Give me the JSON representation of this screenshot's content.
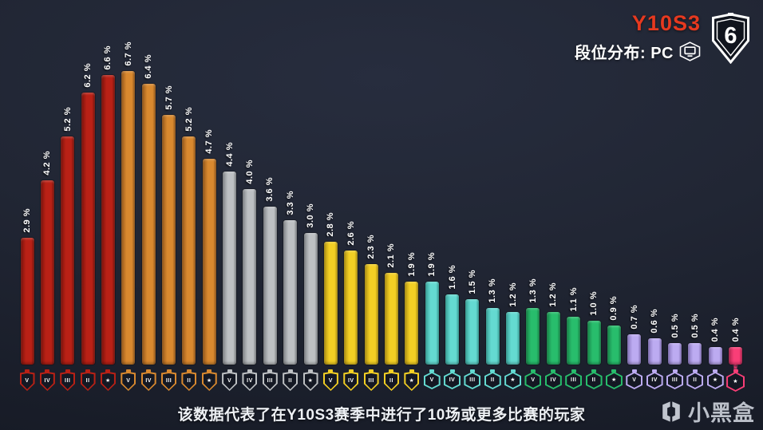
{
  "header": {
    "season": "Y10S3",
    "season_color": "#e6391f",
    "subtitle": "段位分布: PC",
    "platform": "PC",
    "logo_number": "6"
  },
  "chart_data": {
    "type": "bar",
    "title": "Y10S3 段位分布: PC",
    "xlabel": "",
    "ylabel": "",
    "unit": "%",
    "ylim": [
      0,
      7
    ],
    "grid": false,
    "legend_position": "none",
    "bar_label_format": "{value} %",
    "categories": [
      "Copper V",
      "Copper IV",
      "Copper III",
      "Copper II",
      "Copper I",
      "Bronze V",
      "Bronze IV",
      "Bronze III",
      "Bronze II",
      "Bronze I",
      "Silver V",
      "Silver IV",
      "Silver III",
      "Silver II",
      "Silver I",
      "Gold V",
      "Gold IV",
      "Gold III",
      "Gold II",
      "Gold I",
      "Platinum V",
      "Platinum IV",
      "Platinum III",
      "Platinum II",
      "Platinum I",
      "Emerald V",
      "Emerald IV",
      "Emerald III",
      "Emerald II",
      "Emerald I",
      "Diamond V",
      "Diamond IV",
      "Diamond III",
      "Diamond II",
      "Diamond I",
      "Champions"
    ],
    "values": [
      2.9,
      4.2,
      5.2,
      6.2,
      6.6,
      6.7,
      6.4,
      5.7,
      5.2,
      4.7,
      4.4,
      4.0,
      3.6,
      3.3,
      3.0,
      2.8,
      2.6,
      2.3,
      2.1,
      1.9,
      1.9,
      1.6,
      1.5,
      1.3,
      1.2,
      1.3,
      1.2,
      1.1,
      1.0,
      0.9,
      0.7,
      0.6,
      0.5,
      0.5,
      0.4,
      0.4
    ],
    "groups": [
      {
        "name": "Copper",
        "icon_shape": "shield",
        "color": "#b92116",
        "shade": "#7c130c",
        "tier_glyphs": [
          "V",
          "IV",
          "III",
          "II",
          "★"
        ],
        "values": [
          2.9,
          4.2,
          5.2,
          6.2,
          6.6
        ]
      },
      {
        "name": "Bronze",
        "icon_shape": "shield",
        "color": "#d9892f",
        "shade": "#97591b",
        "tier_glyphs": [
          "V",
          "IV",
          "III",
          "II",
          "★"
        ],
        "values": [
          6.7,
          6.4,
          5.7,
          5.2,
          4.7
        ]
      },
      {
        "name": "Silver",
        "icon_shape": "shield",
        "color": "#bdc0c3",
        "shade": "#84878b",
        "tier_glyphs": [
          "V",
          "IV",
          "III",
          "II",
          "★"
        ],
        "values": [
          4.4,
          4.0,
          3.6,
          3.3,
          3.0
        ]
      },
      {
        "name": "Gold",
        "icon_shape": "shield",
        "color": "#f3cf24",
        "shade": "#b29312",
        "tier_glyphs": [
          "V",
          "IV",
          "III",
          "II",
          "★"
        ],
        "values": [
          2.8,
          2.6,
          2.3,
          2.1,
          1.9
        ]
      },
      {
        "name": "Platinum",
        "icon_shape": "hex",
        "color": "#64dad1",
        "shade": "#39a59c",
        "tier_glyphs": [
          "V",
          "IV",
          "III",
          "II",
          "★"
        ],
        "values": [
          1.9,
          1.6,
          1.5,
          1.3,
          1.2
        ]
      },
      {
        "name": "Emerald",
        "icon_shape": "hex",
        "color": "#28bd6c",
        "shade": "#178549",
        "tier_glyphs": [
          "V",
          "IV",
          "III",
          "II",
          "★"
        ],
        "values": [
          1.3,
          1.2,
          1.1,
          1.0,
          0.9
        ]
      },
      {
        "name": "Diamond",
        "icon_shape": "hex",
        "color": "#bcabf1",
        "shade": "#8876bd",
        "tier_glyphs": [
          "V",
          "IV",
          "III",
          "II",
          "★"
        ],
        "values": [
          0.7,
          0.6,
          0.5,
          0.5,
          0.4
        ]
      },
      {
        "name": "Champions",
        "icon_shape": "crown",
        "color": "#f93e77",
        "shade": "#b22450",
        "tier_glyphs": [
          "★"
        ],
        "values": [
          0.4
        ]
      }
    ]
  },
  "footer": {
    "note": "该数据代表了在Y10S3赛季中进行了10场或更多比赛的玩家",
    "watermark_text": "小黑盒"
  }
}
